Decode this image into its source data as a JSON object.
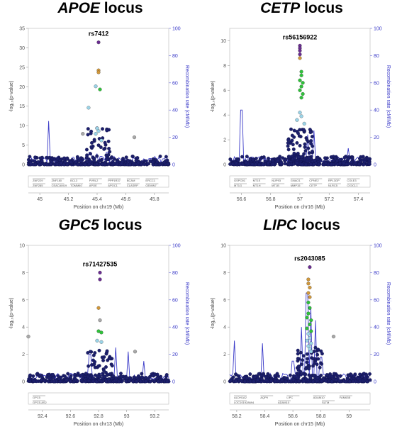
{
  "colors": {
    "background": "#ffffff",
    "points_default": "#1c1f6b",
    "recombination": "#3a3ac8",
    "ld_colors": [
      "#6a2c91",
      "#d1983b",
      "#2fc23a",
      "#9bd4e8",
      "#a9a9a9"
    ]
  },
  "chart_data": [
    {
      "type": "scatter",
      "title_gene": "APOE",
      "title_suffix": " locus",
      "lead_snp": "rs7412",
      "xlabel": "Position on chr19 (Mb)",
      "ylabel": "-log₁₀(p-value)",
      "y2label": "Recombination rate (cM/Mb)",
      "xlim": [
        44.92,
        45.9
      ],
      "ylim": [
        0,
        35
      ],
      "y2lim": [
        0,
        100
      ],
      "xticks": [
        45,
        45.2,
        45.4,
        45.6,
        45.8
      ],
      "xtick_labels": [
        "45",
        "45.2",
        "45.4",
        "45.6",
        "45.8"
      ],
      "yticks": [
        0,
        5,
        10,
        15,
        20,
        25,
        30,
        35
      ],
      "y2ticks": [
        0,
        20,
        40,
        60,
        80,
        100
      ],
      "highlight_points": [
        {
          "x": 45.41,
          "y": 31.4,
          "ld": 0
        },
        {
          "x": 45.41,
          "y": 24.2,
          "ld": 1
        },
        {
          "x": 45.41,
          "y": 23.7,
          "ld": 1
        },
        {
          "x": 45.39,
          "y": 20.1,
          "ld": 3
        },
        {
          "x": 45.42,
          "y": 19.3,
          "ld": 2
        },
        {
          "x": 45.34,
          "y": 14.6,
          "ld": 3
        },
        {
          "x": 45.4,
          "y": 9.3,
          "ld": 3
        },
        {
          "x": 45.41,
          "y": 8.6,
          "ld": 3
        },
        {
          "x": 45.39,
          "y": 7.9,
          "ld": 3
        },
        {
          "x": 45.3,
          "y": 7.9,
          "ld": 4
        },
        {
          "x": 45.66,
          "y": 7.0,
          "ld": 4
        },
        {
          "x": 45.43,
          "y": 6.2,
          "ld": 3
        }
      ],
      "recomb_spikes": [
        {
          "x": 45.06,
          "y": 32
        },
        {
          "x": 45.27,
          "y": 6
        },
        {
          "x": 45.35,
          "y": 9
        },
        {
          "x": 45.4,
          "y": 8
        },
        {
          "x": 45.47,
          "y": 9
        },
        {
          "x": 45.55,
          "y": 5
        }
      ],
      "genes": [
        [
          "ZNF229",
          "ZNF180",
          "BCL3",
          "PVRL2",
          "PPP1R37",
          "BCAM",
          "ERCC1"
        ],
        [
          "ZNF285",
          "CEACAM19",
          "TOMM40",
          "APOE",
          "APOC1",
          "CLASRP",
          "GEMIN7"
        ]
      ],
      "n_background": 380
    },
    {
      "type": "scatter",
      "title_gene": "CETP",
      "title_suffix": " locus",
      "lead_snp": "rs56156922",
      "xlabel": "Position on chr16 (Mb)",
      "ylabel": "-log₁₀(p-value)",
      "y2label": "Recombination rate (cM/Mb)",
      "xlim": [
        56.52,
        57.48
      ],
      "ylim": [
        0,
        11
      ],
      "y2lim": [
        0,
        100
      ],
      "xticks": [
        56.6,
        56.8,
        57,
        57.2,
        57.4
      ],
      "xtick_labels": [
        "56.6",
        "56.8",
        "57",
        "57.2",
        "57.4"
      ],
      "yticks": [
        0,
        2,
        4,
        6,
        8,
        10
      ],
      "y2ticks": [
        0,
        20,
        40,
        60,
        80,
        100
      ],
      "highlight_points": [
        {
          "x": 57.0,
          "y": 9.6,
          "ld": 0
        },
        {
          "x": 57.0,
          "y": 9.4,
          "ld": 0
        },
        {
          "x": 57.0,
          "y": 9.2,
          "ld": 0
        },
        {
          "x": 57.0,
          "y": 8.9,
          "ld": 0
        },
        {
          "x": 57.0,
          "y": 8.6,
          "ld": 1
        },
        {
          "x": 57.01,
          "y": 7.5,
          "ld": 2
        },
        {
          "x": 57.01,
          "y": 7.2,
          "ld": 2
        },
        {
          "x": 57.0,
          "y": 6.8,
          "ld": 2
        },
        {
          "x": 57.02,
          "y": 6.6,
          "ld": 2
        },
        {
          "x": 57.01,
          "y": 6.3,
          "ld": 2
        },
        {
          "x": 57.0,
          "y": 6.0,
          "ld": 2
        },
        {
          "x": 57.02,
          "y": 5.7,
          "ld": 2
        },
        {
          "x": 57.01,
          "y": 5.4,
          "ld": 2
        },
        {
          "x": 57.0,
          "y": 4.2,
          "ld": 3
        },
        {
          "x": 57.01,
          "y": 3.9,
          "ld": 3
        },
        {
          "x": 56.98,
          "y": 3.6,
          "ld": 3
        },
        {
          "x": 57.03,
          "y": 3.3,
          "ld": 3
        }
      ],
      "recomb_spikes": [
        {
          "x": 56.6,
          "y": 40
        },
        {
          "x": 57.05,
          "y": 22
        },
        {
          "x": 57.1,
          "y": 25
        },
        {
          "x": 57.33,
          "y": 12
        }
      ],
      "genes": [
        [
          "GSPO01",
          "MT1E",
          "NUP93",
          "GNAO1",
          "CPNE2",
          "RPL3GP",
          "COLE3"
        ],
        [
          "MT1G",
          "MT1H",
          "MT1B",
          "MMP15",
          "CETP",
          "NLRC5",
          "CX3CL1"
        ]
      ],
      "n_background": 520
    },
    {
      "type": "scatter",
      "title_gene": "GPC5",
      "title_suffix": " locus",
      "lead_snp": "rs71427535",
      "xlabel": "Position on chr13 (Mb)",
      "ylabel": "-log₁₀(p-value)",
      "y2label": "Recombination rate (cM/Mb)",
      "xlim": [
        92.3,
        93.3
      ],
      "ylim": [
        0,
        10
      ],
      "y2lim": [
        0,
        100
      ],
      "xticks": [
        92.4,
        92.6,
        92.8,
        93,
        93.2
      ],
      "xtick_labels": [
        "92.4",
        "92.6",
        "92.8",
        "93",
        "93.2"
      ],
      "yticks": [
        0,
        2,
        4,
        6,
        8,
        10
      ],
      "y2ticks": [
        0,
        20,
        40,
        60,
        80,
        100
      ],
      "highlight_points": [
        {
          "x": 92.81,
          "y": 8.0,
          "ld": 0
        },
        {
          "x": 92.81,
          "y": 7.5,
          "ld": 0
        },
        {
          "x": 92.8,
          "y": 5.4,
          "ld": 1
        },
        {
          "x": 92.81,
          "y": 4.5,
          "ld": 4
        },
        {
          "x": 92.8,
          "y": 3.7,
          "ld": 2
        },
        {
          "x": 92.82,
          "y": 3.6,
          "ld": 2
        },
        {
          "x": 92.79,
          "y": 3.0,
          "ld": 3
        },
        {
          "x": 92.82,
          "y": 2.9,
          "ld": 3
        },
        {
          "x": 92.3,
          "y": 3.3,
          "ld": 4
        },
        {
          "x": 93.06,
          "y": 2.2,
          "ld": 4
        }
      ],
      "recomb_spikes": [
        {
          "x": 92.74,
          "y": 20
        },
        {
          "x": 92.92,
          "y": 25
        },
        {
          "x": 93.01,
          "y": 22
        },
        {
          "x": 93.12,
          "y": 15
        }
      ],
      "genes": [
        [
          "GPC5"
        ],
        [
          "GPC5-AS2"
        ]
      ],
      "n_background": 420
    },
    {
      "type": "scatter",
      "title_gene": "LIPC",
      "title_suffix": " locus",
      "lead_snp": "rs2043085",
      "xlabel": "Position on chr15 (Mb)",
      "ylabel": "-log₁₀(p-value)",
      "y2label": "Recombination rate (cM/Mb)",
      "xlim": [
        58.15,
        59.15
      ],
      "ylim": [
        0,
        10
      ],
      "y2lim": [
        0,
        100
      ],
      "xticks": [
        58.2,
        58.4,
        58.6,
        58.8,
        59
      ],
      "xtick_labels": [
        "58.2",
        "58.4",
        "58.6",
        "58.8",
        "59"
      ],
      "yticks": [
        0,
        2,
        4,
        6,
        8,
        10
      ],
      "y2ticks": [
        0,
        20,
        40,
        60,
        80,
        100
      ],
      "highlight_points": [
        {
          "x": 58.72,
          "y": 8.4,
          "ld": 0
        },
        {
          "x": 58.71,
          "y": 7.5,
          "ld": 1
        },
        {
          "x": 58.71,
          "y": 7.2,
          "ld": 1
        },
        {
          "x": 58.72,
          "y": 6.9,
          "ld": 1
        },
        {
          "x": 58.71,
          "y": 6.5,
          "ld": 1
        },
        {
          "x": 58.72,
          "y": 6.2,
          "ld": 1
        },
        {
          "x": 58.71,
          "y": 5.8,
          "ld": 2
        },
        {
          "x": 58.72,
          "y": 5.4,
          "ld": 2
        },
        {
          "x": 58.71,
          "y": 5.0,
          "ld": 2
        },
        {
          "x": 58.7,
          "y": 4.7,
          "ld": 2
        },
        {
          "x": 58.73,
          "y": 4.5,
          "ld": 2
        },
        {
          "x": 58.72,
          "y": 4.2,
          "ld": 2
        },
        {
          "x": 58.7,
          "y": 3.9,
          "ld": 2
        },
        {
          "x": 58.73,
          "y": 3.7,
          "ld": 2
        },
        {
          "x": 58.71,
          "y": 3.5,
          "ld": 3
        },
        {
          "x": 58.72,
          "y": 3.2,
          "ld": 3
        },
        {
          "x": 58.7,
          "y": 3.0,
          "ld": 3
        },
        {
          "x": 58.73,
          "y": 2.8,
          "ld": 3
        },
        {
          "x": 58.71,
          "y": 2.6,
          "ld": 3
        },
        {
          "x": 58.72,
          "y": 2.4,
          "ld": 3
        },
        {
          "x": 58.89,
          "y": 3.3,
          "ld": 4
        },
        {
          "x": 58.73,
          "y": 2.2,
          "ld": 3
        }
      ],
      "recomb_spikes": [
        {
          "x": 58.18,
          "y": 30
        },
        {
          "x": 58.38,
          "y": 28
        },
        {
          "x": 58.6,
          "y": 15
        },
        {
          "x": 58.66,
          "y": 40
        },
        {
          "x": 58.7,
          "y": 65
        },
        {
          "x": 58.73,
          "y": 55
        },
        {
          "x": 58.76,
          "y": 45
        },
        {
          "x": 58.8,
          "y": 18
        }
      ],
      "genes": [
        [
          "ALDH1A2",
          "AQP9",
          "LIPC",
          "ADAM10",
          "FAM63B"
        ],
        [
          "LOC101928694",
          "ADAM10",
          "SLTM"
        ]
      ],
      "n_background": 460
    }
  ]
}
